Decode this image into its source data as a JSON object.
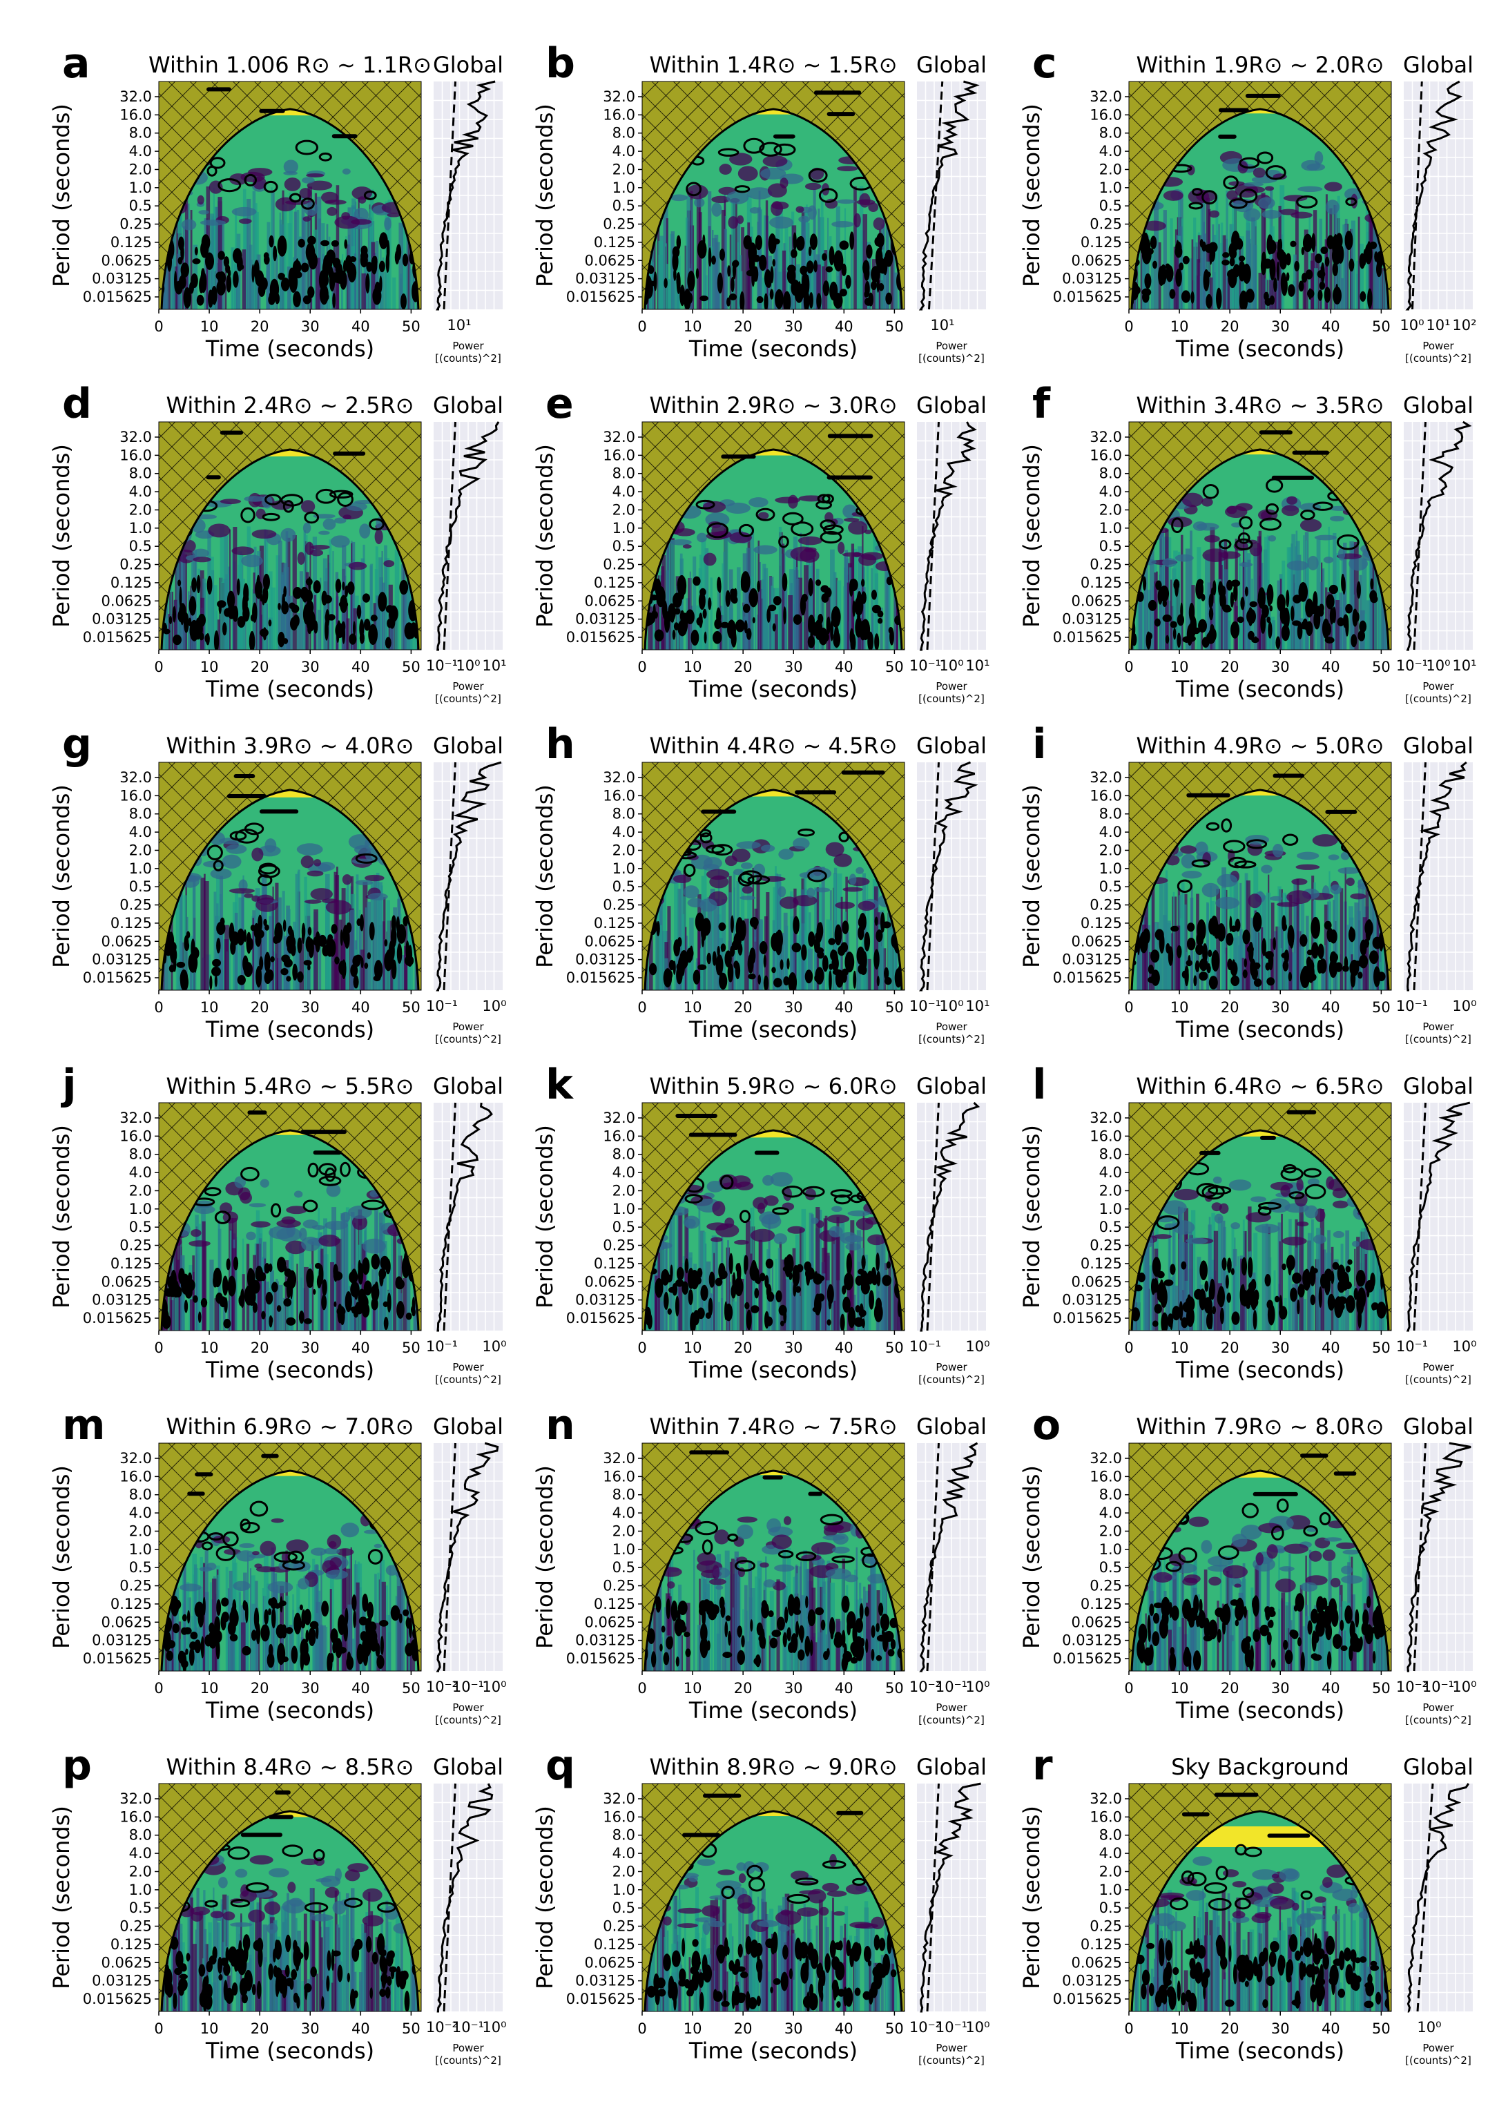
{
  "figure": {
    "global_label": "Global",
    "y_axis_label": "Period (seconds)",
    "x_axis_label": "Time (seconds)",
    "power_label_line1": "Power",
    "power_label_line2": "[(counts)^2]"
  },
  "colors": {
    "cone_fill": "#a3a223",
    "power_high": "#fde725",
    "power_mid": "#35b779",
    "power_low": "#31688e",
    "power_min": "#440154",
    "global_bg": "#eaeaf2",
    "grid": "#ffffff"
  },
  "chart_data": [
    {
      "label": "a",
      "type": "heatmap",
      "title_prefix": "Within ",
      "title_expr": "1.006 R⊙ ∼ 1.1R⊙",
      "xlim": [
        0,
        52
      ],
      "x_ticks": [
        "0",
        "10",
        "20",
        "30",
        "40",
        "50"
      ],
      "y_ticks": [
        "32.0",
        "16.0",
        "8.0",
        "4.0",
        "2.0",
        "1.0",
        "0.5",
        "0.25",
        "0.125",
        "0.0625",
        "0.03125",
        "0.015625"
      ],
      "global_ticks": [
        "10¹"
      ],
      "global_mark_level": 0.3
    },
    {
      "label": "b",
      "type": "heatmap",
      "title_prefix": "Within ",
      "title_expr": "1.4R⊙ ∼ 1.5R⊙",
      "xlim": [
        0,
        52
      ],
      "x_ticks": [
        "0",
        "10",
        "20",
        "30",
        "40",
        "50"
      ],
      "y_ticks": [
        "32.0",
        "16.0",
        "8.0",
        "4.0",
        "2.0",
        "1.0",
        "0.5",
        "0.25",
        "0.125",
        "0.0625",
        "0.03125",
        "0.015625"
      ],
      "global_ticks": [
        "10¹"
      ],
      "global_mark_level": 0.35
    },
    {
      "label": "c",
      "type": "heatmap",
      "title_prefix": "Within ",
      "title_expr": "1.9R⊙ ∼ 2.0R⊙",
      "xlim": [
        0,
        52
      ],
      "x_ticks": [
        "0",
        "10",
        "20",
        "30",
        "40",
        "50"
      ],
      "y_ticks": [
        "32.0",
        "16.0",
        "8.0",
        "4.0",
        "2.0",
        "1.0",
        "0.5",
        "0.25",
        "0.125",
        "0.0625",
        "0.03125",
        "0.015625"
      ],
      "global_ticks": [
        "10⁰",
        "10¹",
        "10²"
      ],
      "global_mark_level": 0.25
    },
    {
      "label": "d",
      "type": "heatmap",
      "title_prefix": "Within ",
      "title_expr": "2.4R⊙ ∼ 2.5R⊙",
      "xlim": [
        0,
        52
      ],
      "x_ticks": [
        "0",
        "10",
        "20",
        "30",
        "40",
        "50"
      ],
      "y_ticks": [
        "32.0",
        "16.0",
        "8.0",
        "4.0",
        "2.0",
        "1.0",
        "0.5",
        "0.25",
        "0.125",
        "0.0625",
        "0.03125",
        "0.015625"
      ],
      "global_ticks": [
        "10⁻¹",
        "10⁰",
        "10¹"
      ],
      "global_mark_level": 0.3
    },
    {
      "label": "e",
      "type": "heatmap",
      "title_prefix": "Within ",
      "title_expr": "2.9R⊙ ∼ 3.0R⊙",
      "xlim": [
        0,
        52
      ],
      "x_ticks": [
        "0",
        "10",
        "20",
        "30",
        "40",
        "50"
      ],
      "y_ticks": [
        "32.0",
        "16.0",
        "8.0",
        "4.0",
        "2.0",
        "1.0",
        "0.5",
        "0.25",
        "0.125",
        "0.0625",
        "0.03125",
        "0.015625"
      ],
      "global_ticks": [
        "10⁻¹",
        "10⁰",
        "10¹"
      ],
      "global_mark_level": 0.3
    },
    {
      "label": "f",
      "type": "heatmap",
      "title_prefix": "Within ",
      "title_expr": "3.4R⊙ ∼ 3.5R⊙",
      "xlim": [
        0,
        52
      ],
      "x_ticks": [
        "0",
        "10",
        "20",
        "30",
        "40",
        "50"
      ],
      "y_ticks": [
        "32.0",
        "16.0",
        "8.0",
        "4.0",
        "2.0",
        "1.0",
        "0.5",
        "0.25",
        "0.125",
        "0.0625",
        "0.03125",
        "0.015625"
      ],
      "global_ticks": [
        "10⁻¹",
        "10⁰",
        "10¹"
      ],
      "global_mark_level": 0.3
    },
    {
      "label": "g",
      "type": "heatmap",
      "title_prefix": "Within ",
      "title_expr": "3.9R⊙ ∼ 4.0R⊙",
      "xlim": [
        0,
        52
      ],
      "x_ticks": [
        "0",
        "10",
        "20",
        "30",
        "40",
        "50"
      ],
      "y_ticks": [
        "32.0",
        "16.0",
        "8.0",
        "4.0",
        "2.0",
        "1.0",
        "0.5",
        "0.25",
        "0.125",
        "0.0625",
        "0.03125",
        "0.015625"
      ],
      "global_ticks": [
        "10⁻¹",
        "10⁰"
      ],
      "global_mark_level": 0.3
    },
    {
      "label": "h",
      "type": "heatmap",
      "title_prefix": "Within ",
      "title_expr": "4.4R⊙ ∼ 4.5R⊙",
      "xlim": [
        0,
        52
      ],
      "x_ticks": [
        "0",
        "10",
        "20",
        "30",
        "40",
        "50"
      ],
      "y_ticks": [
        "32.0",
        "16.0",
        "8.0",
        "4.0",
        "2.0",
        "1.0",
        "0.5",
        "0.25",
        "0.125",
        "0.0625",
        "0.03125",
        "0.015625"
      ],
      "global_ticks": [
        "10⁻¹",
        "10⁰",
        "10¹"
      ],
      "global_mark_level": 0.3
    },
    {
      "label": "i",
      "type": "heatmap",
      "title_prefix": "Within ",
      "title_expr": "4.9R⊙ ∼ 5.0R⊙",
      "xlim": [
        0,
        52
      ],
      "x_ticks": [
        "0",
        "10",
        "20",
        "30",
        "40",
        "50"
      ],
      "y_ticks": [
        "32.0",
        "16.0",
        "8.0",
        "4.0",
        "2.0",
        "1.0",
        "0.5",
        "0.25",
        "0.125",
        "0.0625",
        "0.03125",
        "0.015625"
      ],
      "global_ticks": [
        "10⁻¹",
        "10⁰"
      ],
      "global_mark_level": 0.3
    },
    {
      "label": "j",
      "type": "heatmap",
      "title_prefix": "Within ",
      "title_expr": "5.4R⊙ ∼ 5.5R⊙",
      "xlim": [
        0,
        52
      ],
      "x_ticks": [
        "0",
        "10",
        "20",
        "30",
        "40",
        "50"
      ],
      "y_ticks": [
        "32.0",
        "16.0",
        "8.0",
        "4.0",
        "2.0",
        "1.0",
        "0.5",
        "0.25",
        "0.125",
        "0.0625",
        "0.03125",
        "0.015625"
      ],
      "global_ticks": [
        "10⁻¹",
        "10⁰"
      ],
      "global_mark_level": 0.3
    },
    {
      "label": "k",
      "type": "heatmap",
      "title_prefix": "Within ",
      "title_expr": "5.9R⊙ ∼ 6.0R⊙",
      "xlim": [
        0,
        52
      ],
      "x_ticks": [
        "0",
        "10",
        "20",
        "30",
        "40",
        "50"
      ],
      "y_ticks": [
        "32.0",
        "16.0",
        "8.0",
        "4.0",
        "2.0",
        "1.0",
        "0.5",
        "0.25",
        "0.125",
        "0.0625",
        "0.03125",
        "0.015625"
      ],
      "global_ticks": [
        "10⁻¹",
        "10⁰"
      ],
      "global_mark_level": 0.3
    },
    {
      "label": "l",
      "type": "heatmap",
      "title_prefix": "Within ",
      "title_expr": "6.4R⊙ ∼ 6.5R⊙",
      "xlim": [
        0,
        52
      ],
      "x_ticks": [
        "0",
        "10",
        "20",
        "30",
        "40",
        "50"
      ],
      "y_ticks": [
        "32.0",
        "16.0",
        "8.0",
        "4.0",
        "2.0",
        "1.0",
        "0.5",
        "0.25",
        "0.125",
        "0.0625",
        "0.03125",
        "0.015625"
      ],
      "global_ticks": [
        "10⁻¹",
        "10⁰"
      ],
      "global_mark_level": 0.3
    },
    {
      "label": "m",
      "type": "heatmap",
      "title_prefix": "Within ",
      "title_expr": "6.9R⊙ ∼ 7.0R⊙",
      "xlim": [
        0,
        52
      ],
      "x_ticks": [
        "0",
        "10",
        "20",
        "30",
        "40",
        "50"
      ],
      "y_ticks": [
        "32.0",
        "16.0",
        "8.0",
        "4.0",
        "2.0",
        "1.0",
        "0.5",
        "0.25",
        "0.125",
        "0.0625",
        "0.03125",
        "0.015625"
      ],
      "global_ticks": [
        "10⁻²",
        "10⁻¹",
        "10⁰"
      ],
      "global_mark_level": 0.3
    },
    {
      "label": "n",
      "type": "heatmap",
      "title_prefix": "Within ",
      "title_expr": "7.4R⊙ ∼ 7.5R⊙",
      "xlim": [
        0,
        52
      ],
      "x_ticks": [
        "0",
        "10",
        "20",
        "30",
        "40",
        "50"
      ],
      "y_ticks": [
        "32.0",
        "16.0",
        "8.0",
        "4.0",
        "2.0",
        "1.0",
        "0.5",
        "0.25",
        "0.125",
        "0.0625",
        "0.03125",
        "0.015625"
      ],
      "global_ticks": [
        "10⁻²",
        "10⁻¹",
        "10⁰"
      ],
      "global_mark_level": 0.3
    },
    {
      "label": "o",
      "type": "heatmap",
      "title_prefix": "Within ",
      "title_expr": "7.9R⊙ ∼ 8.0R⊙",
      "xlim": [
        0,
        52
      ],
      "x_ticks": [
        "0",
        "10",
        "20",
        "30",
        "40",
        "50"
      ],
      "y_ticks": [
        "32.0",
        "16.0",
        "8.0",
        "4.0",
        "2.0",
        "1.0",
        "0.5",
        "0.25",
        "0.125",
        "0.0625",
        "0.03125",
        "0.015625"
      ],
      "global_ticks": [
        "10⁻²",
        "10⁻¹",
        "10⁰"
      ],
      "global_mark_level": 0.3
    },
    {
      "label": "p",
      "type": "heatmap",
      "title_prefix": "Within ",
      "title_expr": "8.4R⊙ ∼ 8.5R⊙",
      "xlim": [
        0,
        52
      ],
      "x_ticks": [
        "0",
        "10",
        "20",
        "30",
        "40",
        "50"
      ],
      "y_ticks": [
        "32.0",
        "16.0",
        "8.0",
        "4.0",
        "2.0",
        "1.0",
        "0.5",
        "0.25",
        "0.125",
        "0.0625",
        "0.03125",
        "0.015625"
      ],
      "global_ticks": [
        "10⁻²",
        "10⁻¹",
        "10⁰"
      ],
      "global_mark_level": 0.3
    },
    {
      "label": "q",
      "type": "heatmap",
      "title_prefix": "Within ",
      "title_expr": "8.9R⊙ ∼ 9.0R⊙",
      "xlim": [
        0,
        52
      ],
      "x_ticks": [
        "0",
        "10",
        "20",
        "30",
        "40",
        "50"
      ],
      "y_ticks": [
        "32.0",
        "16.0",
        "8.0",
        "4.0",
        "2.0",
        "1.0",
        "0.5",
        "0.25",
        "0.125",
        "0.0625",
        "0.03125",
        "0.015625"
      ],
      "global_ticks": [
        "10⁻²",
        "10⁻¹",
        "10⁰"
      ],
      "global_mark_level": 0.3
    },
    {
      "label": "r",
      "type": "heatmap",
      "title_prefix": "Sky Background",
      "title_expr": "",
      "xlim": [
        0,
        52
      ],
      "x_ticks": [
        "0",
        "10",
        "20",
        "30",
        "40",
        "50"
      ],
      "y_ticks": [
        "32.0",
        "16.0",
        "8.0",
        "4.0",
        "2.0",
        "1.0",
        "0.5",
        "0.25",
        "0.125",
        "0.0625",
        "0.03125",
        "0.015625"
      ],
      "global_ticks": [
        "10⁰"
      ],
      "global_mark_level": 0.4
    }
  ]
}
